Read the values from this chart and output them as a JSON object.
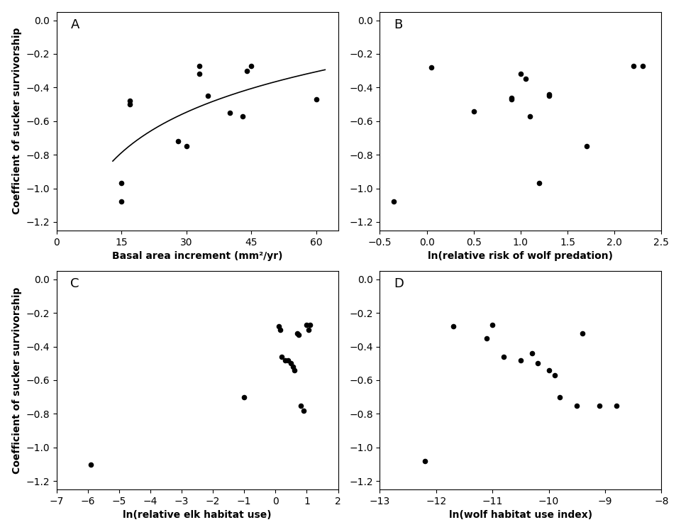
{
  "A": {
    "x": [
      15,
      15,
      17,
      17,
      28,
      30,
      33,
      33,
      35,
      40,
      43,
      44,
      45,
      60
    ],
    "y": [
      -0.97,
      -1.08,
      -0.48,
      -0.5,
      -0.72,
      -0.75,
      -0.27,
      -0.32,
      -0.45,
      -0.55,
      -0.57,
      -0.3,
      -0.27,
      -0.47
    ],
    "xlabel": "Basal area increment (mm²/yr)",
    "ylabel": "Coefficient of sucker survivorship",
    "label": "A",
    "xlim": [
      0,
      65
    ],
    "ylim": [
      -1.25,
      0.05
    ],
    "xticks": [
      0,
      15,
      30,
      45,
      60
    ],
    "yticks": [
      0.0,
      -0.2,
      -0.4,
      -0.6,
      -0.8,
      -1.0,
      -1.2
    ],
    "curve": true
  },
  "B": {
    "x": [
      -0.35,
      0.05,
      0.5,
      0.9,
      0.9,
      1.0,
      1.05,
      1.1,
      1.2,
      1.3,
      1.3,
      1.7,
      2.2,
      2.3
    ],
    "y": [
      -1.08,
      -0.28,
      -0.54,
      -0.46,
      -0.47,
      -0.32,
      -0.35,
      -0.57,
      -0.97,
      -0.44,
      -0.45,
      -0.75,
      -0.27,
      -0.27
    ],
    "xlabel": "ln(relative risk of wolf predation)",
    "ylabel": "",
    "label": "B",
    "xlim": [
      -0.5,
      2.5
    ],
    "ylim": [
      -1.25,
      0.05
    ],
    "xticks": [
      -0.5,
      0.0,
      0.5,
      1.0,
      1.5,
      2.0,
      2.5
    ],
    "yticks": [
      0.0,
      -0.2,
      -0.4,
      -0.6,
      -0.8,
      -1.0,
      -1.2
    ],
    "curve": false
  },
  "C": {
    "x": [
      -5.9,
      -1.0,
      0.1,
      0.15,
      0.2,
      0.3,
      0.4,
      0.5,
      0.55,
      0.6,
      0.7,
      0.75,
      0.8,
      0.9,
      1.0,
      1.05,
      1.1
    ],
    "y": [
      -1.1,
      -0.7,
      -0.28,
      -0.3,
      -0.46,
      -0.48,
      -0.48,
      -0.5,
      -0.52,
      -0.54,
      -0.32,
      -0.33,
      -0.75,
      -0.78,
      -0.27,
      -0.3,
      -0.27
    ],
    "xlabel": "ln(relative elk habitat use)",
    "ylabel": "Coefficient of sucker survivorship",
    "label": "C",
    "xlim": [
      -7,
      2
    ],
    "ylim": [
      -1.25,
      0.05
    ],
    "xticks": [
      -7,
      -6,
      -5,
      -4,
      -3,
      -2,
      -1,
      0,
      1,
      2
    ],
    "yticks": [
      0.0,
      -0.2,
      -0.4,
      -0.6,
      -0.8,
      -1.0,
      -1.2
    ],
    "curve": false
  },
  "D": {
    "x": [
      -12.2,
      -11.7,
      -11.1,
      -11.0,
      -10.8,
      -10.5,
      -10.3,
      -10.2,
      -10.0,
      -9.9,
      -9.8,
      -9.5,
      -9.4,
      -9.1,
      -8.8
    ],
    "y": [
      -1.08,
      -0.28,
      -0.35,
      -0.27,
      -0.46,
      -0.48,
      -0.44,
      -0.5,
      -0.54,
      -0.57,
      -0.7,
      -0.75,
      -0.32,
      -0.75,
      -0.75
    ],
    "xlabel": "ln(wolf habitat use index)",
    "ylabel": "",
    "label": "D",
    "xlim": [
      -13,
      -8
    ],
    "ylim": [
      -1.25,
      0.05
    ],
    "xticks": [
      -13,
      -12,
      -11,
      -10,
      -9,
      -8
    ],
    "yticks": [
      0.0,
      -0.2,
      -0.4,
      -0.6,
      -0.8,
      -1.0,
      -1.2
    ],
    "curve": false
  },
  "dot_color": "#000000",
  "dot_size": 30,
  "line_color": "#000000",
  "font_size": 10,
  "label_fontsize": 13
}
